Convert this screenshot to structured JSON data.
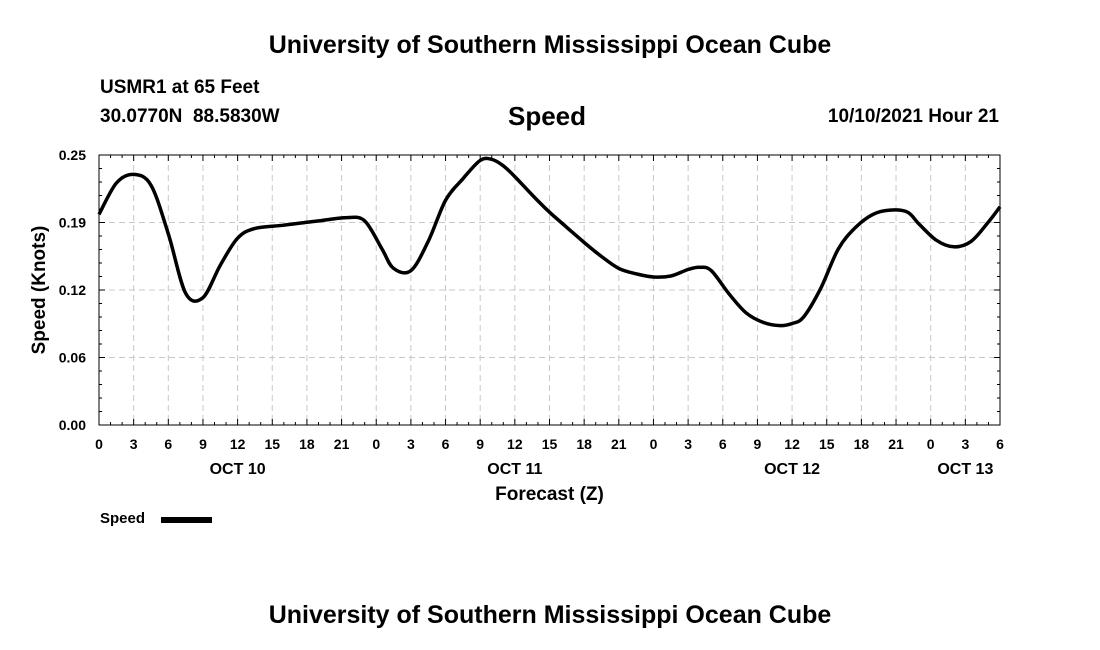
{
  "header": {
    "top_title": "University of Southern Mississippi Ocean Cube",
    "station": "USMR1 at 65 Feet",
    "coords": "30.0770N  88.5830W",
    "chart_name": "Speed",
    "datetime": "10/10/2021 Hour 21"
  },
  "footer": {
    "bottom_title": "University of Southern Mississippi Ocean Cube"
  },
  "legend": {
    "label": "Speed"
  },
  "chart_data": {
    "type": "line",
    "xlabel": "Forecast (Z)",
    "ylabel": "Speed (Knots)",
    "ylim": [
      0,
      0.25
    ],
    "xlim": [
      0,
      78
    ],
    "yticks": [
      "0.00",
      "0.06",
      "0.12",
      "0.19",
      "0.25"
    ],
    "ytick_values": [
      0,
      0.0625,
      0.125,
      0.1875,
      0.25
    ],
    "xtick_labels": [
      "0",
      "3",
      "6",
      "9",
      "12",
      "15",
      "18",
      "21",
      "0",
      "3",
      "6",
      "9",
      "12",
      "15",
      "18",
      "21",
      "0",
      "3",
      "6",
      "9",
      "12",
      "15",
      "18",
      "21",
      "0",
      "3",
      "6"
    ],
    "day_labels": [
      {
        "label": "OCT 10",
        "hour": 12
      },
      {
        "label": "OCT 11",
        "hour": 36
      },
      {
        "label": "OCT 12",
        "hour": 60
      },
      {
        "label": "OCT 13",
        "hour": 75
      }
    ],
    "grid": true,
    "legend_position": "bottom-left",
    "series": [
      {
        "name": "Speed",
        "x": [
          0,
          1.5,
          3,
          4.5,
          6,
          7.5,
          9,
          10.5,
          12,
          13.5,
          16,
          19,
          21.5,
          23,
          24.5,
          25.5,
          27,
          28.5,
          30,
          31.5,
          33,
          34,
          35,
          36,
          37.5,
          39,
          40.5,
          42,
          43.5,
          45,
          46.5,
          48,
          49.5,
          51,
          52,
          53,
          54.5,
          56,
          57.5,
          59,
          60,
          61,
          62.5,
          64,
          65.5,
          67,
          68.5,
          70,
          71,
          72.5,
          74,
          75.5,
          77,
          78
        ],
        "y": [
          0.195,
          0.224,
          0.232,
          0.222,
          0.177,
          0.122,
          0.118,
          0.148,
          0.173,
          0.182,
          0.185,
          0.189,
          0.192,
          0.189,
          0.163,
          0.145,
          0.143,
          0.17,
          0.208,
          0.228,
          0.245,
          0.246,
          0.24,
          0.23,
          0.213,
          0.197,
          0.183,
          0.169,
          0.156,
          0.145,
          0.14,
          0.137,
          0.138,
          0.144,
          0.146,
          0.143,
          0.122,
          0.104,
          0.095,
          0.092,
          0.094,
          0.1,
          0.127,
          0.163,
          0.183,
          0.195,
          0.199,
          0.197,
          0.186,
          0.171,
          0.165,
          0.17,
          0.188,
          0.202
        ]
      }
    ]
  },
  "colors": {
    "line": "#000000",
    "grid": "#c8c8c8",
    "background": "#ffffff"
  }
}
